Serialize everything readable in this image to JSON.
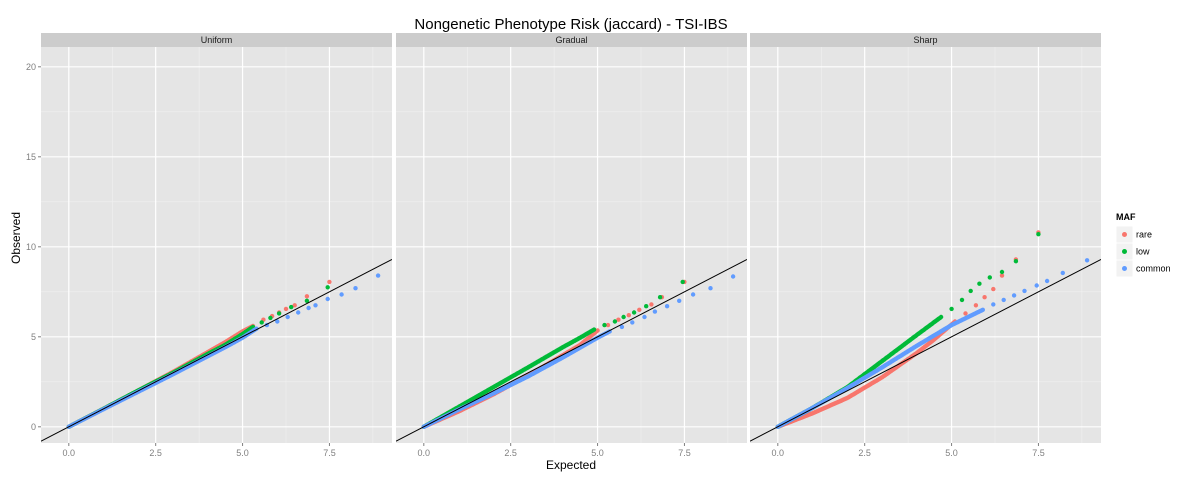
{
  "chart_data": {
    "type": "scatter",
    "title": "Nongenetic Phenotype Risk (jaccard) - TSI-IBS",
    "xlabel": "Expected",
    "ylabel": "Observed",
    "xlim": [
      -0.8,
      9.3
    ],
    "ylim": [
      -0.9,
      21.1
    ],
    "x_ticks": [
      "0.0",
      "2.5",
      "5.0",
      "7.5"
    ],
    "y_ticks": [
      "0",
      "5",
      "10",
      "15",
      "20"
    ],
    "reference_line": {
      "slope": 1,
      "intercept": 0,
      "color": "#000000"
    },
    "legend": {
      "title": "MAF",
      "placement": "right",
      "items": [
        {
          "name": "rare",
          "color": "#F8766D"
        },
        {
          "name": "low",
          "color": "#00BA38"
        },
        {
          "name": "common",
          "color": "#619CFF"
        }
      ]
    },
    "panels": [
      {
        "label": "Uniform",
        "series": [
          {
            "name": "rare",
            "color": "#F8766D",
            "tail": [
              [
                5.3,
                5.6
              ],
              [
                5.6,
                5.95
              ],
              [
                5.85,
                6.15
              ],
              [
                6.05,
                6.35
              ],
              [
                6.25,
                6.55
              ],
              [
                6.5,
                6.75
              ],
              [
                6.85,
                7.25
              ],
              [
                7.5,
                8.05
              ]
            ],
            "curve": [
              [
                0,
                0
              ],
              [
                1,
                1
              ],
              [
                2,
                2.02
              ],
              [
                3,
                3.05
              ],
              [
                4,
                4.15
              ],
              [
                4.5,
                4.7
              ],
              [
                5,
                5.3
              ],
              [
                5.3,
                5.6
              ]
            ]
          },
          {
            "name": "low",
            "color": "#00BA38",
            "tail": [
              [
                5.3,
                5.55
              ],
              [
                5.55,
                5.8
              ],
              [
                5.8,
                6.05
              ],
              [
                6.05,
                6.3
              ],
              [
                6.4,
                6.65
              ],
              [
                6.85,
                7.0
              ],
              [
                7.45,
                7.75
              ]
            ],
            "curve": [
              [
                0,
                0
              ],
              [
                1,
                1
              ],
              [
                2,
                2.02
              ],
              [
                3,
                3.0
              ],
              [
                4,
                4.05
              ],
              [
                4.5,
                4.55
              ],
              [
                5,
                5.15
              ],
              [
                5.3,
                5.55
              ]
            ]
          },
          {
            "name": "common",
            "color": "#619CFF",
            "tail": [
              [
                5.4,
                5.45
              ],
              [
                5.7,
                5.65
              ],
              [
                6.0,
                5.85
              ],
              [
                6.3,
                6.1
              ],
              [
                6.6,
                6.35
              ],
              [
                6.9,
                6.6
              ],
              [
                7.1,
                6.75
              ],
              [
                7.45,
                7.1
              ],
              [
                7.85,
                7.35
              ],
              [
                8.25,
                7.7
              ],
              [
                8.9,
                8.4
              ]
            ],
            "curve": [
              [
                0,
                0
              ],
              [
                1,
                0.98
              ],
              [
                2,
                1.95
              ],
              [
                3,
                2.92
              ],
              [
                4,
                3.92
              ],
              [
                4.5,
                4.42
              ],
              [
                5,
                4.95
              ],
              [
                5.4,
                5.45
              ]
            ]
          }
        ]
      },
      {
        "label": "Gradual",
        "series": [
          {
            "name": "rare",
            "color": "#F8766D",
            "tail": [
              [
                5.0,
                5.35
              ],
              [
                5.3,
                5.65
              ],
              [
                5.6,
                5.95
              ],
              [
                5.9,
                6.2
              ],
              [
                6.2,
                6.5
              ],
              [
                6.55,
                6.8
              ],
              [
                6.85,
                7.2
              ],
              [
                7.5,
                8.05
              ]
            ],
            "curve": [
              [
                0,
                0
              ],
              [
                1,
                0.85
              ],
              [
                2,
                1.8
              ],
              [
                3,
                2.85
              ],
              [
                4,
                3.98
              ],
              [
                4.5,
                4.55
              ],
              [
                5,
                5.35
              ]
            ]
          },
          {
            "name": "low",
            "color": "#00BA38",
            "tail": [
              [
                4.9,
                5.4
              ],
              [
                5.2,
                5.65
              ],
              [
                5.5,
                5.85
              ],
              [
                5.75,
                6.1
              ],
              [
                6.05,
                6.35
              ],
              [
                6.4,
                6.7
              ],
              [
                6.8,
                7.2
              ],
              [
                7.45,
                8.05
              ]
            ],
            "curve": [
              [
                0,
                0
              ],
              [
                1,
                1.1
              ],
              [
                2,
                2.2
              ],
              [
                3,
                3.3
              ],
              [
                4,
                4.42
              ],
              [
                4.5,
                4.95
              ],
              [
                4.9,
                5.4
              ]
            ]
          },
          {
            "name": "common",
            "color": "#619CFF",
            "tail": [
              [
                5.35,
                5.3
              ],
              [
                5.7,
                5.55
              ],
              [
                6.0,
                5.8
              ],
              [
                6.35,
                6.1
              ],
              [
                6.65,
                6.4
              ],
              [
                7.0,
                6.7
              ],
              [
                7.35,
                7.0
              ],
              [
                7.75,
                7.35
              ],
              [
                8.25,
                7.7
              ],
              [
                8.9,
                8.35
              ]
            ],
            "curve": [
              [
                0,
                0
              ],
              [
                1,
                0.95
              ],
              [
                2,
                1.85
              ],
              [
                3,
                2.8
              ],
              [
                4,
                3.85
              ],
              [
                4.5,
                4.4
              ],
              [
                5,
                4.95
              ],
              [
                5.35,
                5.3
              ]
            ]
          }
        ]
      },
      {
        "label": "Sharp",
        "series": [
          {
            "name": "rare",
            "color": "#F8766D",
            "tail": [
              [
                5.1,
                5.85
              ],
              [
                5.4,
                6.3
              ],
              [
                5.7,
                6.75
              ],
              [
                5.95,
                7.2
              ],
              [
                6.2,
                7.65
              ],
              [
                6.45,
                8.4
              ],
              [
                6.85,
                9.3
              ],
              [
                7.5,
                10.8
              ]
            ],
            "curve": [
              [
                0,
                0
              ],
              [
                1,
                0.75
              ],
              [
                2,
                1.6
              ],
              [
                3,
                2.75
              ],
              [
                4,
                4.1
              ],
              [
                4.5,
                4.85
              ],
              [
                5.1,
                5.85
              ]
            ]
          },
          {
            "name": "low",
            "color": "#00BA38",
            "tail": [
              [
                4.7,
                6.1
              ],
              [
                5.0,
                6.55
              ],
              [
                5.3,
                7.05
              ],
              [
                5.55,
                7.55
              ],
              [
                5.8,
                7.95
              ],
              [
                6.1,
                8.3
              ],
              [
                6.45,
                8.6
              ],
              [
                6.85,
                9.2
              ],
              [
                7.5,
                10.7
              ]
            ],
            "curve": [
              [
                0,
                0
              ],
              [
                1,
                1.05
              ],
              [
                2,
                2.2
              ],
              [
                3,
                3.65
              ],
              [
                4,
                5.1
              ],
              [
                4.7,
                6.1
              ]
            ]
          },
          {
            "name": "common",
            "color": "#619CFF",
            "tail": [
              [
                5.9,
                6.5
              ],
              [
                6.2,
                6.8
              ],
              [
                6.5,
                7.05
              ],
              [
                6.8,
                7.3
              ],
              [
                7.1,
                7.55
              ],
              [
                7.45,
                7.85
              ],
              [
                7.75,
                8.1
              ],
              [
                8.2,
                8.55
              ],
              [
                8.9,
                9.25
              ]
            ],
            "curve": [
              [
                0,
                0
              ],
              [
                1,
                1.05
              ],
              [
                2,
                2.15
              ],
              [
                3,
                3.3
              ],
              [
                4,
                4.5
              ],
              [
                5,
                5.65
              ],
              [
                5.9,
                6.5
              ]
            ]
          }
        ]
      }
    ]
  }
}
